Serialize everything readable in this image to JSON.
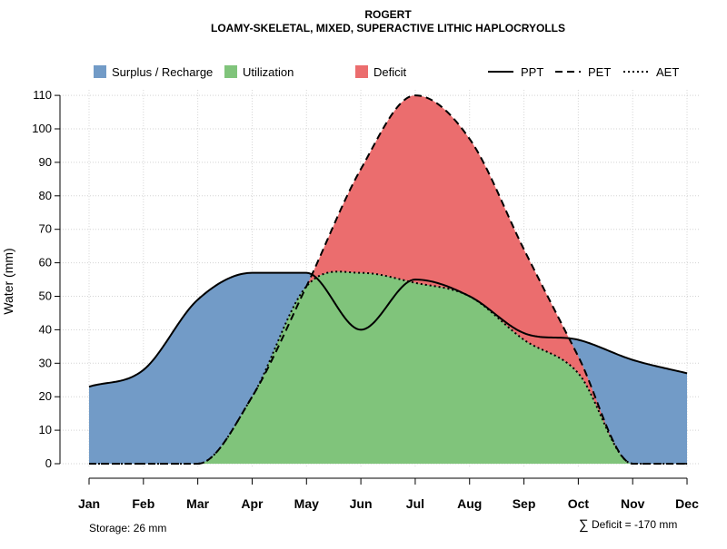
{
  "chart_data": {
    "type": "area",
    "title": "ROGERT",
    "subtitle": "LOAMY-SKELETAL, MIXED, SUPERACTIVE LITHIC HAPLOCRYOLLS",
    "ylabel": "Water (mm)",
    "xlabel": "",
    "ylim": [
      0,
      110
    ],
    "yticks": [
      0,
      10,
      20,
      30,
      40,
      50,
      60,
      70,
      80,
      90,
      100,
      110
    ],
    "categories": [
      "Jan",
      "Feb",
      "Mar",
      "Apr",
      "May",
      "Jun",
      "Jul",
      "Aug",
      "Sep",
      "Oct",
      "Nov",
      "Dec"
    ],
    "grid": true,
    "legend_position": "top",
    "legend": {
      "fills": [
        {
          "label": "Surplus / Recharge",
          "color": "#729BC7"
        },
        {
          "label": "Utilization",
          "color": "#80C47B"
        },
        {
          "label": "Deficit",
          "color": "#EB6D6E"
        }
      ],
      "lines": [
        {
          "label": "PPT",
          "dash": "solid"
        },
        {
          "label": "PET",
          "dash": "dashed"
        },
        {
          "label": "AET",
          "dash": "dotted"
        }
      ]
    },
    "series": [
      {
        "name": "PPT",
        "values": [
          23,
          28,
          49,
          57,
          57,
          40,
          55,
          50,
          39,
          37,
          31,
          27
        ]
      },
      {
        "name": "PET",
        "values": [
          0,
          0,
          0,
          20,
          53,
          88,
          110,
          97,
          64,
          32,
          0,
          0
        ]
      },
      {
        "name": "AET",
        "values": [
          0,
          0,
          0,
          20,
          53,
          57,
          54,
          50,
          37,
          27,
          0,
          0
        ]
      }
    ],
    "annotations": {
      "storage": "Storage: 26 mm",
      "deficit_symbol": "∑",
      "deficit": "Deficit = -170 mm"
    }
  }
}
